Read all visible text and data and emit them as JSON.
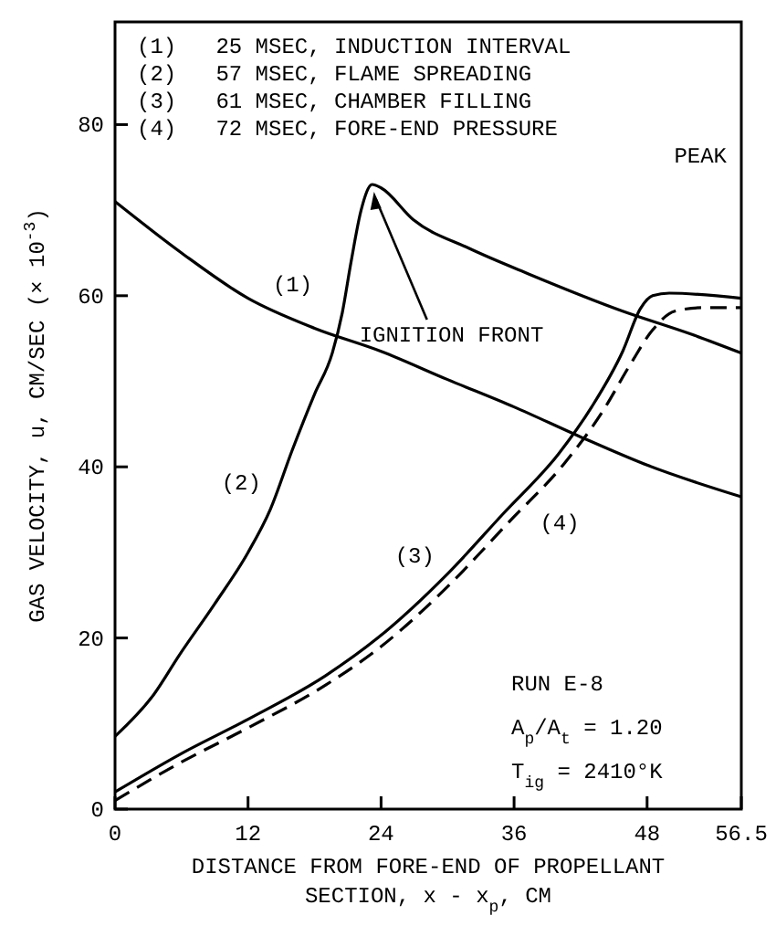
{
  "chart_data": {
    "type": "line",
    "xlabel": "DISTANCE FROM FORE-END OF PROPELLANT SECTION, x - x$_{p}$, CM",
    "ylabel": "GAS VELOCITY, u, CM/SEC (× 10$^{-3}$)",
    "xlim": [
      0,
      56.5
    ],
    "xticks": [
      0,
      12,
      24,
      36,
      48,
      56.5
    ],
    "ylim": [
      0,
      92
    ],
    "yticks": [
      0,
      20,
      40,
      60,
      80
    ],
    "grid": false,
    "marker": "none",
    "series": [
      {
        "name": "(1)",
        "color": "#000000",
        "line_style": "solid",
        "x": [
          0,
          6,
          12,
          18,
          24,
          30,
          36,
          42,
          48,
          56.5
        ],
        "values": [
          71,
          65,
          59.7,
          56.2,
          53.5,
          50.2,
          47,
          43.5,
          40.2,
          36.5
        ]
      },
      {
        "name": "(2)",
        "color": "#000000",
        "line_style": "solid",
        "x": [
          0,
          3.5,
          5.8,
          9,
          12,
          14,
          16,
          18,
          19.6,
          20.5,
          21.3,
          22.2,
          23.2,
          24,
          26.9,
          32,
          37.4,
          45.8,
          52,
          56.5
        ],
        "values": [
          8.5,
          13.4,
          18,
          24,
          30,
          35,
          42,
          48.5,
          53.3,
          58,
          64,
          70,
          73,
          72.6,
          68.9,
          65.5,
          62.5,
          58.2,
          55.5,
          53.3
        ]
      },
      {
        "name": "(3)",
        "color": "#000000",
        "line_style": "solid",
        "x": [
          0,
          6,
          12,
          19,
          23.7,
          30,
          35,
          40,
          43,
          45.8,
          47.4,
          48.5,
          50,
          56.5
        ],
        "values": [
          2,
          6.5,
          10.5,
          15.6,
          20,
          27.5,
          34.5,
          41.5,
          47,
          53.5,
          58.5,
          60,
          60.3,
          59.7
        ]
      },
      {
        "name": "(4)",
        "color": "#000000",
        "line_style": "dashed",
        "x": [
          0,
          6,
          12,
          19,
          24,
          30,
          35.5,
          40.6,
          44,
          46.5,
          48.5,
          50.5,
          53,
          56.5
        ],
        "values": [
          1,
          5.5,
          9.5,
          14.5,
          19,
          26,
          33.5,
          40.5,
          46.5,
          52,
          56,
          58.2,
          58.6,
          58.6
        ]
      }
    ],
    "annotations": [
      "(1)   25 MSEC, INDUCTION INTERVAL",
      "(2)   57 MSEC, FLAME SPREADING",
      "(3)   61 MSEC, CHAMBER FILLING",
      "(4)   72 MSEC, FORE-END PRESSURE\nPEAK",
      "RUN E-8",
      "A$_{p}$/A$_{t}$ = 1.20",
      "T$_{ig}$ = 2410°K",
      {
        "text": "IGNITION FRONT",
        "x": 23.2,
        "y": 73
      }
    ]
  }
}
